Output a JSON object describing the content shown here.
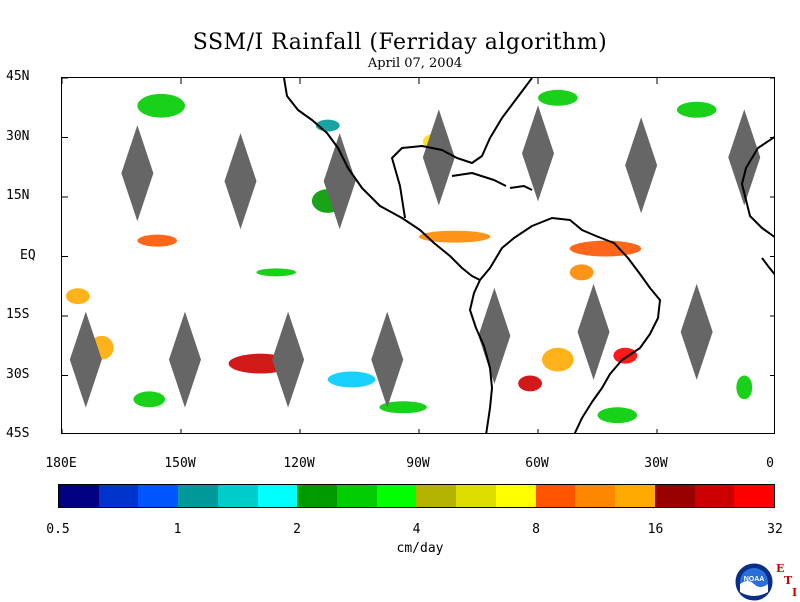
{
  "title": "SSM/I Rainfall (Ferriday algorithm)",
  "subtitle": "April 07, 2004",
  "latitude_labels": [
    "45N",
    "30N",
    "15N",
    "EQ",
    "15S",
    "30S",
    "45S"
  ],
  "latitude_values": [
    45,
    30,
    15,
    0,
    -15,
    -30,
    -45
  ],
  "longitude_labels": [
    "180E",
    "150W",
    "120W",
    "90W",
    "60W",
    "30W",
    "0"
  ],
  "longitude_values": [
    -180,
    -150,
    -120,
    -90,
    -60,
    -30,
    0
  ],
  "map_extent": {
    "lon_min": -180,
    "lon_max": 0,
    "lat_min": -45,
    "lat_max": 45
  },
  "gap_diamonds": [
    {
      "lon": -161,
      "lat": 21
    },
    {
      "lon": -135,
      "lat": 19
    },
    {
      "lon": -110,
      "lat": 19
    },
    {
      "lon": -85,
      "lat": 25
    },
    {
      "lon": -60,
      "lat": 26
    },
    {
      "lon": -34,
      "lat": 23
    },
    {
      "lon": -8,
      "lat": 25
    },
    {
      "lon": -174,
      "lat": -26
    },
    {
      "lon": -149,
      "lat": -26
    },
    {
      "lon": -123,
      "lat": -26
    },
    {
      "lon": -98,
      "lat": -26
    },
    {
      "lon": -71,
      "lat": -20
    },
    {
      "lon": -46,
      "lat": -19
    },
    {
      "lon": -20,
      "lat": -19
    }
  ],
  "rain_patches": [
    {
      "lon": -155,
      "lat": 38,
      "rx": 6,
      "ry": 3,
      "color": "#00cc00"
    },
    {
      "lon": -156,
      "lat": 4,
      "rx": 5,
      "ry": 1.5,
      "color": "#ff5500"
    },
    {
      "lon": -170,
      "lat": -23,
      "rx": 3,
      "ry": 3,
      "color": "#ffaa00"
    },
    {
      "lon": -130,
      "lat": -27,
      "rx": 8,
      "ry": 2.5,
      "color": "#cc0000"
    },
    {
      "lon": -158,
      "lat": -36,
      "rx": 4,
      "ry": 2,
      "color": "#00cc00"
    },
    {
      "lon": -113,
      "lat": 14,
      "rx": 4,
      "ry": 3,
      "color": "#009900"
    },
    {
      "lon": -81,
      "lat": 5,
      "rx": 9,
      "ry": 1.5,
      "color": "#ff8800"
    },
    {
      "lon": -86,
      "lat": 29,
      "rx": 3,
      "ry": 2,
      "color": "#ffdd00"
    },
    {
      "lon": -43,
      "lat": 2,
      "rx": 9,
      "ry": 2,
      "color": "#ff5500"
    },
    {
      "lon": -49,
      "lat": -4,
      "rx": 3,
      "ry": 2,
      "color": "#ff8800"
    },
    {
      "lon": -55,
      "lat": -26,
      "rx": 4,
      "ry": 3,
      "color": "#ffaa00"
    },
    {
      "lon": -62,
      "lat": -32,
      "rx": 3,
      "ry": 2,
      "color": "#cc0000"
    },
    {
      "lon": -38,
      "lat": -25,
      "rx": 3,
      "ry": 2,
      "color": "#ff0000"
    },
    {
      "lon": -40,
      "lat": -40,
      "rx": 5,
      "ry": 2,
      "color": "#00cc00"
    },
    {
      "lon": -20,
      "lat": 37,
      "rx": 5,
      "ry": 2,
      "color": "#00cc00"
    },
    {
      "lon": -107,
      "lat": -31,
      "rx": 6,
      "ry": 2,
      "color": "#00ccff"
    },
    {
      "lon": -94,
      "lat": -38,
      "rx": 6,
      "ry": 1.5,
      "color": "#00cc00"
    },
    {
      "lon": -176,
      "lat": -10,
      "rx": 3,
      "ry": 2,
      "color": "#ffaa00"
    },
    {
      "lon": -55,
      "lat": 40,
      "rx": 5,
      "ry": 2,
      "color": "#00cc00"
    },
    {
      "lon": -113,
      "lat": 33,
      "rx": 3,
      "ry": 1.5,
      "color": "#009999"
    },
    {
      "lon": -8,
      "lat": -33,
      "rx": 2,
      "ry": 3,
      "color": "#00cc00"
    },
    {
      "lon": -126,
      "lat": -4,
      "rx": 5,
      "ry": 1,
      "color": "#00cc00"
    }
  ],
  "colorbar": {
    "colors": [
      "#000080",
      "#0033cc",
      "#0055ff",
      "#009999",
      "#00cccc",
      "#00ffff",
      "#009900",
      "#00cc00",
      "#00ff00",
      "#b3b300",
      "#dddd00",
      "#ffff00",
      "#ff5500",
      "#ff8800",
      "#ffaa00",
      "#990000",
      "#cc0000",
      "#ff0000"
    ],
    "labels": [
      "0.5",
      "1",
      "2",
      "4",
      "8",
      "16",
      "32"
    ],
    "units": "cm/day"
  },
  "logo": {
    "text": "NOAA"
  },
  "eti_letters": [
    "E",
    "T",
    "I"
  ]
}
